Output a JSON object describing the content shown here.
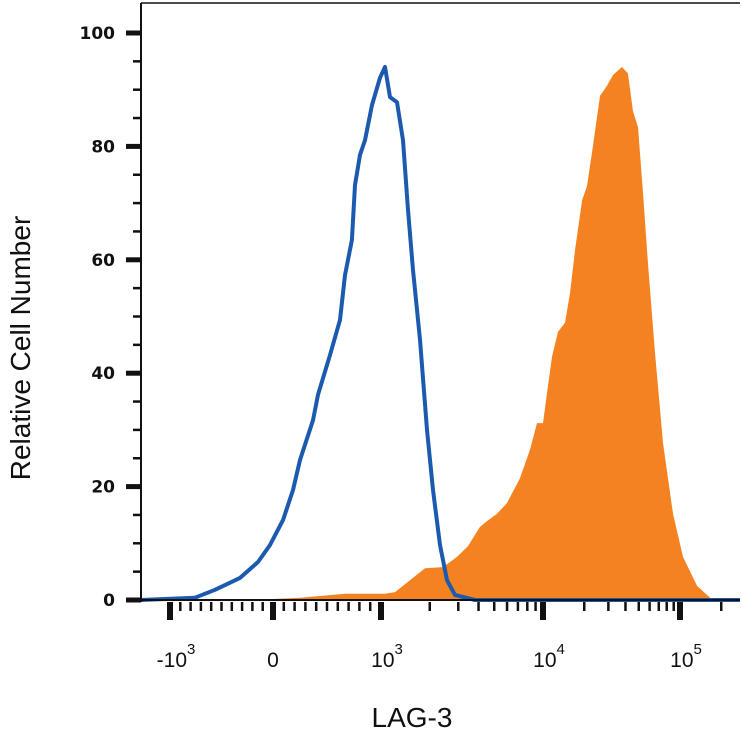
{
  "chart_data": {
    "type": "area",
    "title": "",
    "xlabel": "LAG-3",
    "ylabel": "Relative Cell Number",
    "x_scale": "biexponential",
    "xlim": [
      -1280,
      274000
    ],
    "ylim": [
      0,
      100
    ],
    "grid": false,
    "legend": "none",
    "y_ticks": [
      0,
      20,
      40,
      60,
      80,
      100
    ],
    "x_ticks": [
      {
        "value": -1000,
        "base": "-10",
        "exp": "3"
      },
      {
        "value": 0,
        "base": "0",
        "exp": ""
      },
      {
        "value": 1000,
        "base": "10",
        "exp": "3"
      },
      {
        "value": 10000,
        "base": "10",
        "exp": "4"
      },
      {
        "value": 100000,
        "base": "10",
        "exp": "5"
      }
    ],
    "series": [
      {
        "style": "filled",
        "color": "#F58220",
        "x": [
          -1280,
          -223,
          250,
          435,
          667,
          1059,
          1220,
          1510,
          1870,
          2415,
          2944,
          3443,
          4083,
          4508,
          5197,
          5995,
          7212,
          8318,
          9183,
          10000,
          10700,
          11640,
          12860,
          14480,
          15740,
          17130,
          19280,
          20950,
          23180,
          26070,
          29320,
          32420,
          37730,
          41690,
          45390,
          49340,
          53700,
          58360,
          65730,
          75160,
          88920,
          105200,
          133000,
          165500,
          186200,
          274000
        ],
        "y": [
          0,
          0,
          0.4,
          0.7,
          1.1,
          1.1,
          1.4,
          3.5,
          5.6,
          5.8,
          7.6,
          9.5,
          12.9,
          13.9,
          15.2,
          17.1,
          21.5,
          26.5,
          31.2,
          31.2,
          36.5,
          42.9,
          47.3,
          48.9,
          54.1,
          61.7,
          70.5,
          73.0,
          80.1,
          88.9,
          90.7,
          92.6,
          94.0,
          92.9,
          86.2,
          83.4,
          71.8,
          59.3,
          43.6,
          27.7,
          15.2,
          7.6,
          2.5,
          0.4,
          0,
          0
        ]
      },
      {
        "style": "line",
        "color": "#1B5AAE",
        "x": [
          -1282,
          -757,
          -563,
          -320,
          -146,
          -29,
          93,
          185,
          250,
          370,
          417,
          528,
          620,
          667,
          731,
          759,
          806,
          852,
          917,
          991,
          1059,
          1137,
          1255,
          1367,
          1468,
          1576,
          1741,
          1923,
          2094,
          2312,
          2555,
          2864,
          3802,
          274000
        ],
        "y": [
          0,
          0.4,
          1.8,
          3.9,
          6.7,
          9.7,
          14.1,
          19.4,
          24.7,
          31.7,
          36.2,
          43.2,
          49.4,
          57.3,
          63.5,
          73.2,
          78.5,
          81.1,
          87.3,
          92.1,
          94.0,
          88.7,
          87.8,
          81.1,
          68.8,
          58.2,
          45.9,
          30.0,
          19.4,
          9.7,
          3.5,
          0.9,
          0,
          0
        ]
      }
    ]
  }
}
